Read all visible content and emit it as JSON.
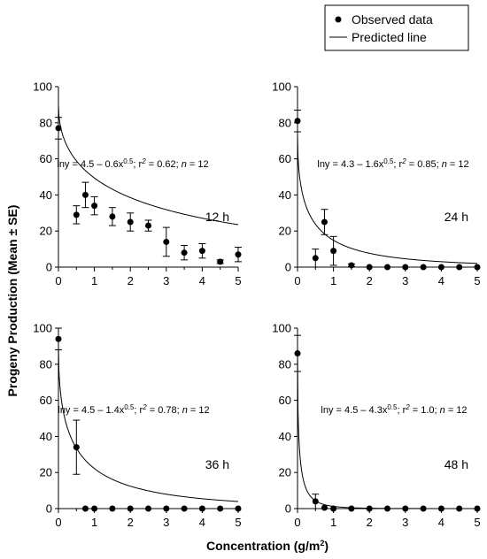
{
  "chart_data": {
    "type": "scatter",
    "xlabel": "Concentration (g/m²)",
    "xlabel_main": "Concentration (g/m",
    "xlabel_sup": "2",
    "xlabel_end": ")",
    "ylabel": "Progeny Production (Mean ± SE)",
    "legend": {
      "position": "top-right",
      "observed_label": "Observed data",
      "predicted_label": "Predicted line"
    },
    "xlim": [
      0,
      5
    ],
    "ylim": [
      0,
      100
    ],
    "xticks": [
      "0",
      "1",
      "2",
      "3",
      "4",
      "5"
    ],
    "yticks": [
      "0",
      "20",
      "40",
      "60",
      "80",
      "100"
    ],
    "panels": [
      {
        "label": "12 h",
        "equation": {
          "part1": "lny = 4.5 – 0.6x",
          "exp": "0.5",
          "part2": "; r",
          "r2sup": "2",
          "part3": " = 0.62; ",
          "nlabel": "n",
          "part4": " = 12"
        },
        "model": {
          "a": 4.5,
          "b": 0.6
        },
        "x": [
          0,
          0.5,
          0.75,
          1,
          1.5,
          2,
          2.5,
          3,
          3.5,
          4,
          4.5,
          5
        ],
        "y": [
          77,
          29,
          40,
          34,
          28,
          25,
          23,
          14,
          8,
          9,
          3,
          7
        ],
        "se": [
          6,
          5,
          7,
          5,
          5,
          5,
          3,
          8,
          4,
          4,
          1,
          4
        ]
      },
      {
        "label": "24 h",
        "equation": {
          "part1": "lny = 4.3 – 1.6x",
          "exp": "0.5",
          "part2": "; r",
          "r2sup": "2",
          "part3": " = 0.85; ",
          "nlabel": "n",
          "part4": " = 12"
        },
        "model": {
          "a": 4.3,
          "b": 1.6
        },
        "x": [
          0,
          0.5,
          0.75,
          1,
          1.5,
          2,
          2.5,
          3,
          3.5,
          4,
          4.5,
          5
        ],
        "y": [
          81,
          5,
          25,
          9,
          1,
          0,
          0,
          0,
          0,
          0,
          0,
          0
        ],
        "se": [
          6,
          5,
          7,
          8,
          0.8,
          0,
          0,
          0,
          0,
          0,
          0,
          0
        ]
      },
      {
        "label": "36 h",
        "equation": {
          "part1": "lny = 4.5 – 1.4x",
          "exp": "0.5",
          "part2": "; r",
          "r2sup": "2",
          "part3": " = 0.78; ",
          "nlabel": "n",
          "part4": " = 12"
        },
        "model": {
          "a": 4.5,
          "b": 1.4
        },
        "x": [
          0,
          0.5,
          0.75,
          1,
          1.5,
          2,
          2.5,
          3,
          3.5,
          4,
          4.5,
          5
        ],
        "y": [
          94,
          34,
          0,
          0,
          0,
          0,
          0,
          0,
          0,
          0,
          0,
          0
        ],
        "se": [
          6,
          15,
          0,
          0,
          0,
          0,
          0,
          0,
          0,
          0,
          0,
          0
        ]
      },
      {
        "label": "48 h",
        "equation": {
          "part1": "lny = 4.5 – 4.3x",
          "exp": "0.5",
          "part2": "; r",
          "r2sup": "2",
          "part3": " = 1.0; ",
          "nlabel": "n",
          "part4": " = 12"
        },
        "model": {
          "a": 4.5,
          "b": 4.3
        },
        "x": [
          0,
          0.5,
          0.75,
          1,
          1.5,
          2,
          2.5,
          3,
          3.5,
          4,
          4.5,
          5
        ],
        "y": [
          86,
          4,
          0.5,
          0,
          0,
          0,
          0,
          0,
          0,
          0,
          0,
          0
        ],
        "se": [
          10,
          4,
          0.5,
          0,
          0,
          0,
          0,
          0,
          0,
          0,
          0,
          0
        ]
      }
    ]
  }
}
